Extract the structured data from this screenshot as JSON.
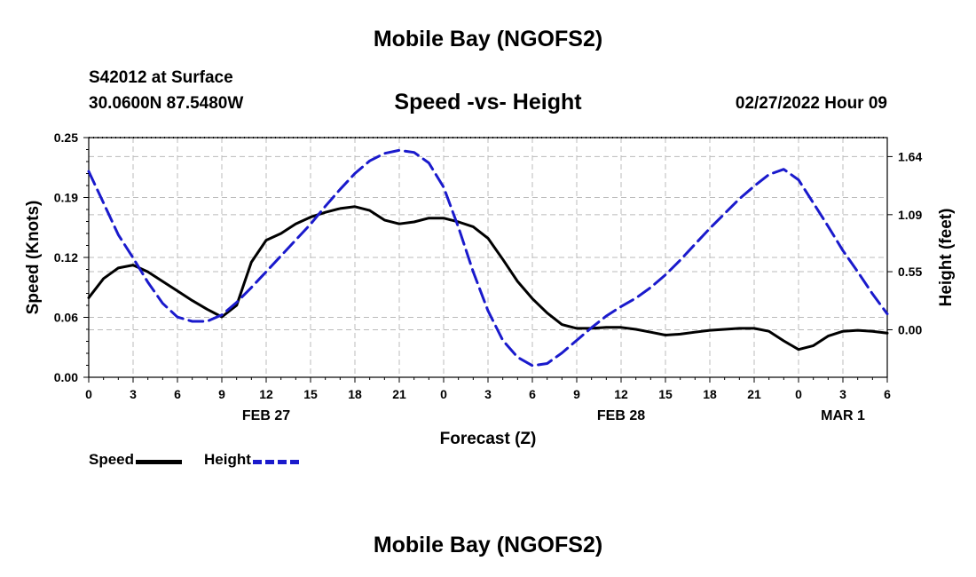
{
  "header": {
    "title": "Mobile Bay (NGOFS2)",
    "station": "S42012 at Surface",
    "coords": "30.0600N  87.5480W",
    "subtitle": "Speed -vs- Height",
    "datetime": "02/27/2022 Hour 09"
  },
  "footer": {
    "title": "Mobile Bay (NGOFS2)"
  },
  "legend": {
    "speed_label": "Speed",
    "height_label": "Height"
  },
  "colors": {
    "speed": "#000000",
    "height": "#1a1acc",
    "grid": "#bbbbbb"
  },
  "chart_data": {
    "type": "line",
    "xlabel": "Forecast (Z)",
    "ylabel_left": "Speed (Knots)",
    "ylabel_right": "Height (feet)",
    "x_range_hours": [
      0,
      54
    ],
    "x_ticks": [
      {
        "h": 0,
        "label": "0"
      },
      {
        "h": 3,
        "label": "3"
      },
      {
        "h": 6,
        "label": "6"
      },
      {
        "h": 9,
        "label": "9"
      },
      {
        "h": 12,
        "label": "12"
      },
      {
        "h": 15,
        "label": "15"
      },
      {
        "h": 18,
        "label": "18"
      },
      {
        "h": 21,
        "label": "21"
      },
      {
        "h": 24,
        "label": "0"
      },
      {
        "h": 27,
        "label": "3"
      },
      {
        "h": 30,
        "label": "6"
      },
      {
        "h": 33,
        "label": "9"
      },
      {
        "h": 36,
        "label": "12"
      },
      {
        "h": 39,
        "label": "15"
      },
      {
        "h": 42,
        "label": "18"
      },
      {
        "h": 45,
        "label": "21"
      },
      {
        "h": 48,
        "label": "0"
      },
      {
        "h": 51,
        "label": "3"
      },
      {
        "h": 54,
        "label": "6"
      }
    ],
    "date_labels": [
      {
        "h": 12,
        "label": "FEB 27"
      },
      {
        "h": 36,
        "label": "FEB 28"
      },
      {
        "h": 51,
        "label": "MAR 1"
      }
    ],
    "y_left": {
      "min": 0,
      "max": 0.25,
      "ticks": [
        "0.00",
        "0.06",
        "0.12",
        "0.19",
        "0.25"
      ],
      "tick_values": [
        0,
        0.0625,
        0.125,
        0.1875,
        0.25
      ]
    },
    "y_right": {
      "min": -0.45,
      "max": 1.82,
      "ticks": [
        "0.00",
        "0.55",
        "1.09",
        "1.64"
      ],
      "tick_values": [
        0,
        0.55,
        1.09,
        1.64
      ]
    },
    "series": [
      {
        "name": "Speed",
        "axis": "left",
        "style": "solid",
        "x": [
          0,
          1,
          2,
          3,
          4,
          5,
          6,
          7,
          8,
          9,
          10,
          11,
          12,
          13,
          14,
          15,
          16,
          17,
          18,
          19,
          20,
          21,
          22,
          23,
          24,
          25,
          26,
          27,
          28,
          29,
          30,
          31,
          32,
          33,
          34,
          35,
          36,
          37,
          38,
          39,
          40,
          41,
          42,
          43,
          44,
          45,
          46,
          47,
          48,
          49,
          50,
          51,
          52,
          53,
          54
        ],
        "values": [
          0.083,
          0.103,
          0.114,
          0.117,
          0.11,
          0.1,
          0.09,
          0.08,
          0.071,
          0.063,
          0.075,
          0.12,
          0.143,
          0.15,
          0.16,
          0.167,
          0.172,
          0.176,
          0.178,
          0.174,
          0.164,
          0.16,
          0.162,
          0.166,
          0.166,
          0.162,
          0.157,
          0.145,
          0.123,
          0.1,
          0.082,
          0.067,
          0.055,
          0.051,
          0.051,
          0.052,
          0.052,
          0.05,
          0.047,
          0.044,
          0.045,
          0.047,
          0.049,
          0.05,
          0.051,
          0.051,
          0.048,
          0.038,
          0.029,
          0.033,
          0.043,
          0.048,
          0.049,
          0.048,
          0.046
        ]
      },
      {
        "name": "Height",
        "axis": "right",
        "style": "dashed",
        "x": [
          0,
          1,
          2,
          3,
          4,
          5,
          6,
          7,
          8,
          9,
          10,
          11,
          12,
          13,
          14,
          15,
          16,
          17,
          18,
          19,
          20,
          21,
          22,
          23,
          24,
          25,
          26,
          27,
          28,
          29,
          30,
          31,
          32,
          33,
          34,
          35,
          36,
          37,
          38,
          39,
          40,
          41,
          42,
          43,
          44,
          45,
          46,
          47,
          48,
          49,
          50,
          51,
          52,
          53,
          54
        ],
        "values": [
          1.5,
          1.2,
          0.9,
          0.68,
          0.45,
          0.25,
          0.12,
          0.08,
          0.08,
          0.14,
          0.26,
          0.4,
          0.55,
          0.7,
          0.85,
          1.0,
          1.17,
          1.33,
          1.48,
          1.6,
          1.67,
          1.7,
          1.68,
          1.58,
          1.35,
          0.97,
          0.55,
          0.18,
          -0.1,
          -0.26,
          -0.34,
          -0.32,
          -0.22,
          -0.1,
          0.02,
          0.13,
          0.22,
          0.3,
          0.4,
          0.52,
          0.66,
          0.81,
          0.96,
          1.1,
          1.24,
          1.36,
          1.47,
          1.52,
          1.42,
          1.2,
          0.98,
          0.75,
          0.55,
          0.34,
          0.15
        ]
      }
    ],
    "grid": true
  }
}
